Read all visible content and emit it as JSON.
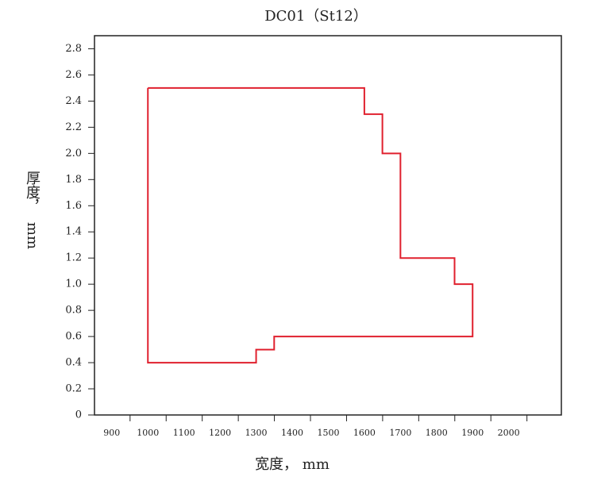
{
  "chart_data": {
    "type": "line",
    "title": "DC01（St12）",
    "x_label": "宽度， mm",
    "y_label_main": "厚度，",
    "y_label_unit": "mm",
    "x": [
      1000,
      1600,
      1600,
      1650,
      1650,
      1700,
      1700,
      1850,
      1850,
      1900,
      1900,
      1350,
      1350,
      1300,
      1300,
      1000,
      1000
    ],
    "series": [
      {
        "color": "#e0202e",
        "values": [
          2.5,
          2.5,
          2.3,
          2.3,
          2.0,
          2.0,
          1.2,
          1.2,
          1.0,
          1.0,
          0.6,
          0.6,
          0.5,
          0.5,
          0.4,
          0.4,
          2.5
        ]
      }
    ],
    "xlim": [
      852,
      2146
    ],
    "ylim": [
      0,
      2.9
    ],
    "xticks": [
      900,
      1000,
      1100,
      1200,
      1300,
      1400,
      1500,
      1600,
      1700,
      1800,
      1900,
      2000
    ],
    "yticks": [
      0,
      0.2,
      0.4,
      0.6,
      0.8,
      {
        "value": 1,
        "label": "1.0"
      },
      1.2,
      1.4,
      1.6,
      1.8,
      {
        "value": 2,
        "label": "2.0"
      },
      2.2,
      2.4,
      2.6,
      2.8
    ]
  }
}
